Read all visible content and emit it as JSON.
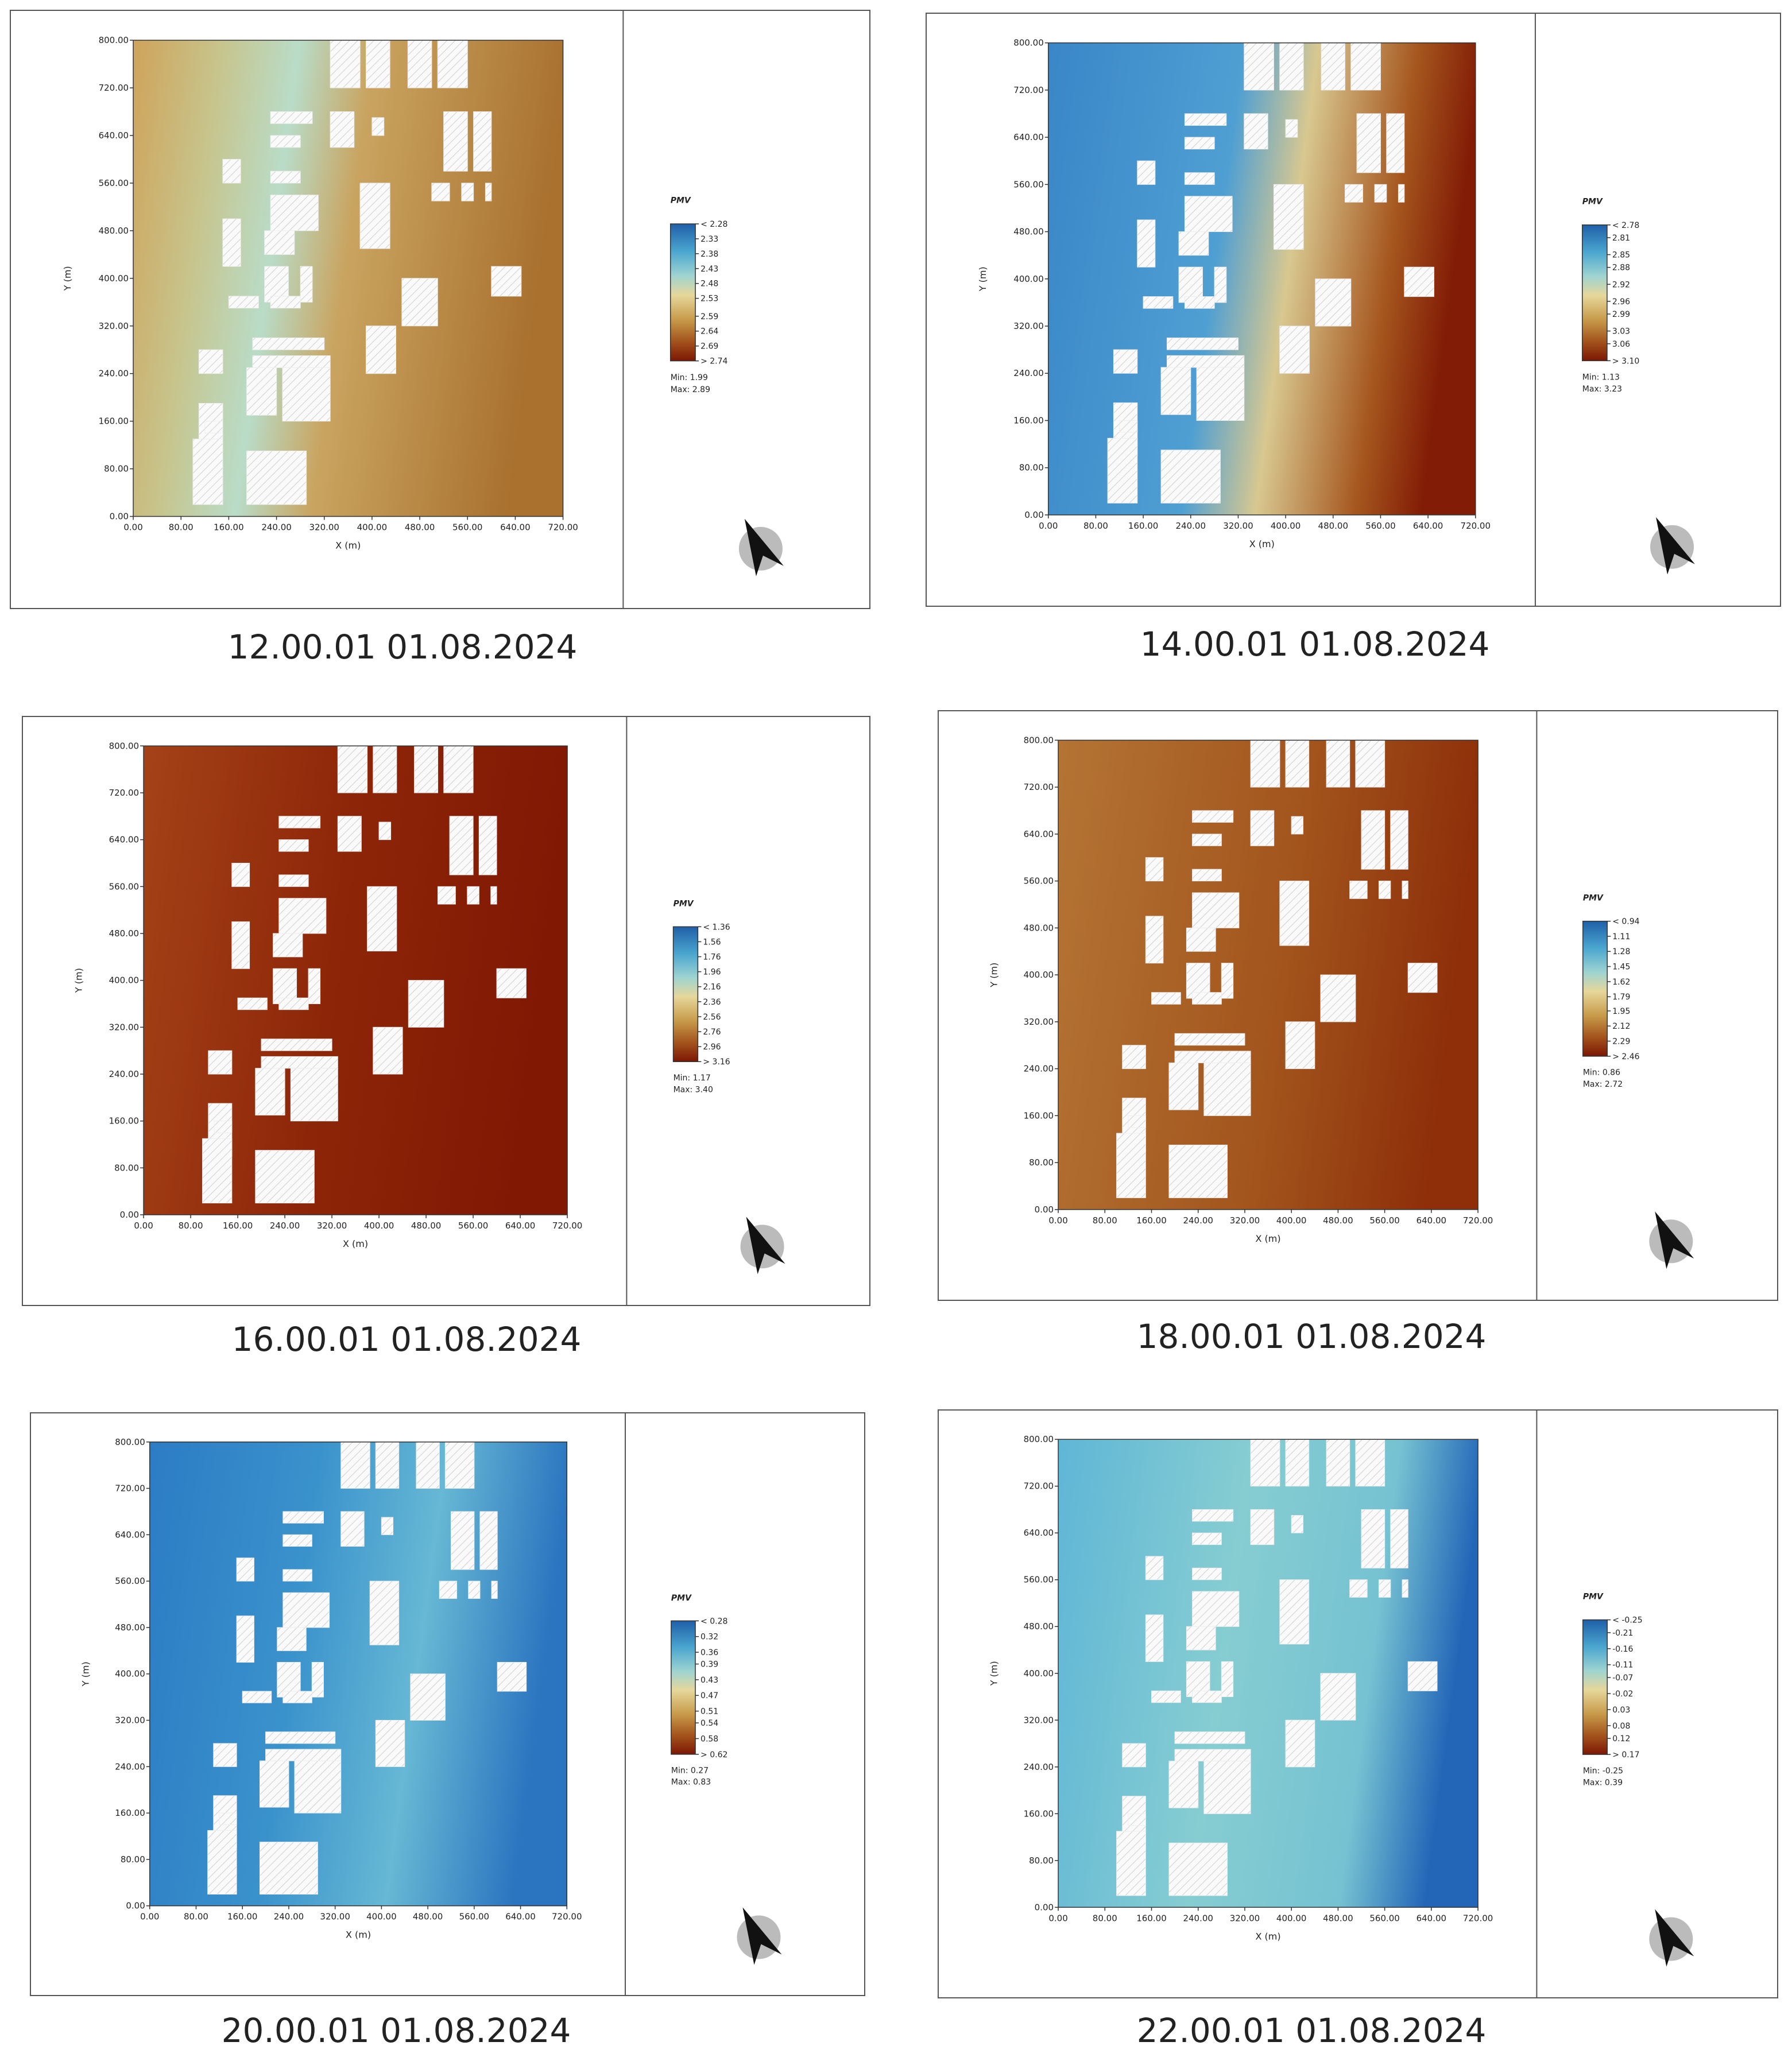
{
  "chart_data": [
    {
      "type": "heatmap",
      "title": "12.00.01 01.08.2024",
      "xlabel": "X (m)",
      "ylabel": "Y (m)",
      "xlim": [
        0,
        720
      ],
      "ylim": [
        0,
        800
      ],
      "xticks": [
        {
          "value": 0,
          "label": "0.00"
        },
        {
          "value": 80,
          "label": "80.00"
        },
        {
          "value": 160,
          "label": "160.00"
        },
        {
          "value": 240,
          "label": "240.00"
        },
        {
          "value": 320,
          "label": "320.00"
        },
        {
          "value": 400,
          "label": "400.00"
        },
        {
          "value": 480,
          "label": "480.00"
        },
        {
          "value": 560,
          "label": "560.00"
        },
        {
          "value": 640,
          "label": "640.00"
        },
        {
          "value": 720,
          "label": "720.00"
        }
      ],
      "yticks": [
        {
          "value": 0,
          "label": "0.00"
        },
        {
          "value": 80,
          "label": "80.00"
        },
        {
          "value": 160,
          "label": "160.00"
        },
        {
          "value": 240,
          "label": "240.00"
        },
        {
          "value": 320,
          "label": "320.00"
        },
        {
          "value": 400,
          "label": "400.00"
        },
        {
          "value": 480,
          "label": "480.00"
        },
        {
          "value": 560,
          "label": "560.00"
        },
        {
          "value": 640,
          "label": "640.00"
        },
        {
          "value": 720,
          "label": "720.00"
        },
        {
          "value": 800,
          "label": "800.00"
        }
      ],
      "legend": {
        "title": "PMV",
        "ticks": [
          {
            "value": 2.28,
            "label": "< 2.28"
          },
          2.33,
          2.38,
          2.43,
          2.48,
          2.53,
          2.59,
          2.64,
          2.69,
          {
            "value": 2.74,
            "label": "> 2.74"
          }
        ],
        "min": "Min: 1.99",
        "max": "Max: 2.89"
      }
    },
    {
      "type": "heatmap",
      "title": "14.00.01 01.08.2024",
      "xlabel": "X (m)",
      "ylabel": "Y (m)",
      "xlim": [
        0,
        720
      ],
      "ylim": [
        0,
        800
      ],
      "xticks": [
        {
          "value": 0,
          "label": "0.00"
        },
        {
          "value": 80,
          "label": "80.00"
        },
        {
          "value": 160,
          "label": "160.00"
        },
        {
          "value": 240,
          "label": "240.00"
        },
        {
          "value": 320,
          "label": "320.00"
        },
        {
          "value": 400,
          "label": "400.00"
        },
        {
          "value": 480,
          "label": "480.00"
        },
        {
          "value": 560,
          "label": "560.00"
        },
        {
          "value": 640,
          "label": "640.00"
        },
        {
          "value": 720,
          "label": "720.00"
        }
      ],
      "yticks": [
        {
          "value": 0,
          "label": "0.00"
        },
        {
          "value": 80,
          "label": "80.00"
        },
        {
          "value": 160,
          "label": "160.00"
        },
        {
          "value": 240,
          "label": "240.00"
        },
        {
          "value": 320,
          "label": "320.00"
        },
        {
          "value": 400,
          "label": "400.00"
        },
        {
          "value": 480,
          "label": "480.00"
        },
        {
          "value": 560,
          "label": "560.00"
        },
        {
          "value": 640,
          "label": "640.00"
        },
        {
          "value": 720,
          "label": "720.00"
        },
        {
          "value": 800,
          "label": "800.00"
        }
      ],
      "legend": {
        "title": "PMV",
        "ticks": [
          {
            "value": 2.78,
            "label": "< 2.78"
          },
          2.81,
          2.85,
          2.88,
          2.92,
          2.96,
          2.99,
          3.03,
          3.06,
          {
            "value": 3.1,
            "label": "> 3.10"
          }
        ],
        "min": "Min: 1.13",
        "max": "Max: 3.23"
      }
    },
    {
      "type": "heatmap",
      "title": "16.00.01 01.08.2024",
      "xlabel": "X (m)",
      "ylabel": "Y (m)",
      "xlim": [
        0,
        720
      ],
      "ylim": [
        0,
        800
      ],
      "xticks": [
        {
          "value": 0,
          "label": "0.00"
        },
        {
          "value": 80,
          "label": "80.00"
        },
        {
          "value": 160,
          "label": "160.00"
        },
        {
          "value": 240,
          "label": "240.00"
        },
        {
          "value": 320,
          "label": "320.00"
        },
        {
          "value": 400,
          "label": "400.00"
        },
        {
          "value": 480,
          "label": "480.00"
        },
        {
          "value": 560,
          "label": "560.00"
        },
        {
          "value": 640,
          "label": "640.00"
        },
        {
          "value": 720,
          "label": "720.00"
        }
      ],
      "yticks": [
        {
          "value": 0,
          "label": "0.00"
        },
        {
          "value": 80,
          "label": "80.00"
        },
        {
          "value": 160,
          "label": "160.00"
        },
        {
          "value": 240,
          "label": "240.00"
        },
        {
          "value": 320,
          "label": "320.00"
        },
        {
          "value": 400,
          "label": "400.00"
        },
        {
          "value": 480,
          "label": "480.00"
        },
        {
          "value": 560,
          "label": "560.00"
        },
        {
          "value": 640,
          "label": "640.00"
        },
        {
          "value": 720,
          "label": "720.00"
        },
        {
          "value": 800,
          "label": "800.00"
        }
      ],
      "legend": {
        "title": "PMV",
        "ticks": [
          {
            "value": 1.36,
            "label": "< 1.36"
          },
          1.56,
          1.76,
          1.96,
          2.16,
          2.36,
          2.56,
          2.76,
          2.96,
          {
            "value": 3.16,
            "label": "> 3.16"
          }
        ],
        "min": "Min: 1.17",
        "max": "Max: 3.40"
      }
    },
    {
      "type": "heatmap",
      "title": "18.00.01 01.08.2024",
      "xlabel": "X (m)",
      "ylabel": "Y (m)",
      "xlim": [
        0,
        720
      ],
      "ylim": [
        0,
        800
      ],
      "xticks": [
        {
          "value": 0,
          "label": "0.00"
        },
        {
          "value": 80,
          "label": "80.00"
        },
        {
          "value": 160,
          "label": "160.00"
        },
        {
          "value": 240,
          "label": "240.00"
        },
        {
          "value": 320,
          "label": "320.00"
        },
        {
          "value": 400,
          "label": "400.00"
        },
        {
          "value": 480,
          "label": "480.00"
        },
        {
          "value": 560,
          "label": "560.00"
        },
        {
          "value": 640,
          "label": "640.00"
        },
        {
          "value": 720,
          "label": "720.00"
        }
      ],
      "yticks": [
        {
          "value": 0,
          "label": "0.00"
        },
        {
          "value": 80,
          "label": "80.00"
        },
        {
          "value": 160,
          "label": "160.00"
        },
        {
          "value": 240,
          "label": "240.00"
        },
        {
          "value": 320,
          "label": "320.00"
        },
        {
          "value": 400,
          "label": "400.00"
        },
        {
          "value": 480,
          "label": "480.00"
        },
        {
          "value": 560,
          "label": "560.00"
        },
        {
          "value": 640,
          "label": "640.00"
        },
        {
          "value": 720,
          "label": "720.00"
        },
        {
          "value": 800,
          "label": "800.00"
        }
      ],
      "legend": {
        "title": "PMV",
        "ticks": [
          {
            "value": 0.94,
            "label": "< 0.94"
          },
          1.11,
          1.28,
          1.45,
          1.62,
          1.79,
          1.95,
          2.12,
          2.29,
          {
            "value": 2.46,
            "label": "> 2.46"
          }
        ],
        "min": "Min: 0.86",
        "max": "Max: 2.72"
      }
    },
    {
      "type": "heatmap",
      "title": "20.00.01 01.08.2024",
      "xlabel": "X (m)",
      "ylabel": "Y (m)",
      "xlim": [
        0,
        720
      ],
      "ylim": [
        0,
        800
      ],
      "xticks": [
        {
          "value": 0,
          "label": "0.00"
        },
        {
          "value": 80,
          "label": "80.00"
        },
        {
          "value": 160,
          "label": "160.00"
        },
        {
          "value": 240,
          "label": "240.00"
        },
        {
          "value": 320,
          "label": "320.00"
        },
        {
          "value": 400,
          "label": "400.00"
        },
        {
          "value": 480,
          "label": "480.00"
        },
        {
          "value": 560,
          "label": "560.00"
        },
        {
          "value": 640,
          "label": "640.00"
        },
        {
          "value": 720,
          "label": "720.00"
        }
      ],
      "yticks": [
        {
          "value": 0,
          "label": "0.00"
        },
        {
          "value": 80,
          "label": "80.00"
        },
        {
          "value": 160,
          "label": "160.00"
        },
        {
          "value": 240,
          "label": "240.00"
        },
        {
          "value": 320,
          "label": "320.00"
        },
        {
          "value": 400,
          "label": "400.00"
        },
        {
          "value": 480,
          "label": "480.00"
        },
        {
          "value": 560,
          "label": "560.00"
        },
        {
          "value": 640,
          "label": "640.00"
        },
        {
          "value": 720,
          "label": "720.00"
        },
        {
          "value": 800,
          "label": "800.00"
        }
      ],
      "legend": {
        "title": "PMV",
        "ticks": [
          {
            "value": 0.28,
            "label": "< 0.28"
          },
          0.32,
          0.36,
          0.39,
          0.43,
          0.47,
          0.51,
          0.54,
          0.58,
          {
            "value": 0.62,
            "label": "> 0.62"
          }
        ],
        "min": "Min: 0.27",
        "max": "Max: 0.83"
      }
    },
    {
      "type": "heatmap",
      "title": "22.00.01 01.08.2024",
      "xlabel": "X (m)",
      "ylabel": "Y (m)",
      "xlim": [
        0,
        720
      ],
      "ylim": [
        0,
        800
      ],
      "xticks": [
        {
          "value": 0,
          "label": "0.00"
        },
        {
          "value": 80,
          "label": "80.00"
        },
        {
          "value": 160,
          "label": "160.00"
        },
        {
          "value": 240,
          "label": "240.00"
        },
        {
          "value": 320,
          "label": "320.00"
        },
        {
          "value": 400,
          "label": "400.00"
        },
        {
          "value": 480,
          "label": "480.00"
        },
        {
          "value": 560,
          "label": "560.00"
        },
        {
          "value": 640,
          "label": "640.00"
        },
        {
          "value": 720,
          "label": "720.00"
        }
      ],
      "yticks": [
        {
          "value": 0,
          "label": "0.00"
        },
        {
          "value": 80,
          "label": "80.00"
        },
        {
          "value": 160,
          "label": "160.00"
        },
        {
          "value": 240,
          "label": "240.00"
        },
        {
          "value": 320,
          "label": "320.00"
        },
        {
          "value": 400,
          "label": "400.00"
        },
        {
          "value": 480,
          "label": "480.00"
        },
        {
          "value": 560,
          "label": "560.00"
        },
        {
          "value": 640,
          "label": "640.00"
        },
        {
          "value": 720,
          "label": "720.00"
        },
        {
          "value": 800,
          "label": "800.00"
        }
      ],
      "legend": {
        "title": "PMV",
        "ticks": [
          {
            "value": -0.25,
            "label": "< -0.25"
          },
          -0.21,
          -0.16,
          -0.11,
          -0.07,
          -0.02,
          0.03,
          0.08,
          0.12,
          {
            "value": 0.17,
            "label": "> 0.17"
          }
        ],
        "min": "Min: -0.25",
        "max": "Max: 0.39"
      }
    }
  ]
}
